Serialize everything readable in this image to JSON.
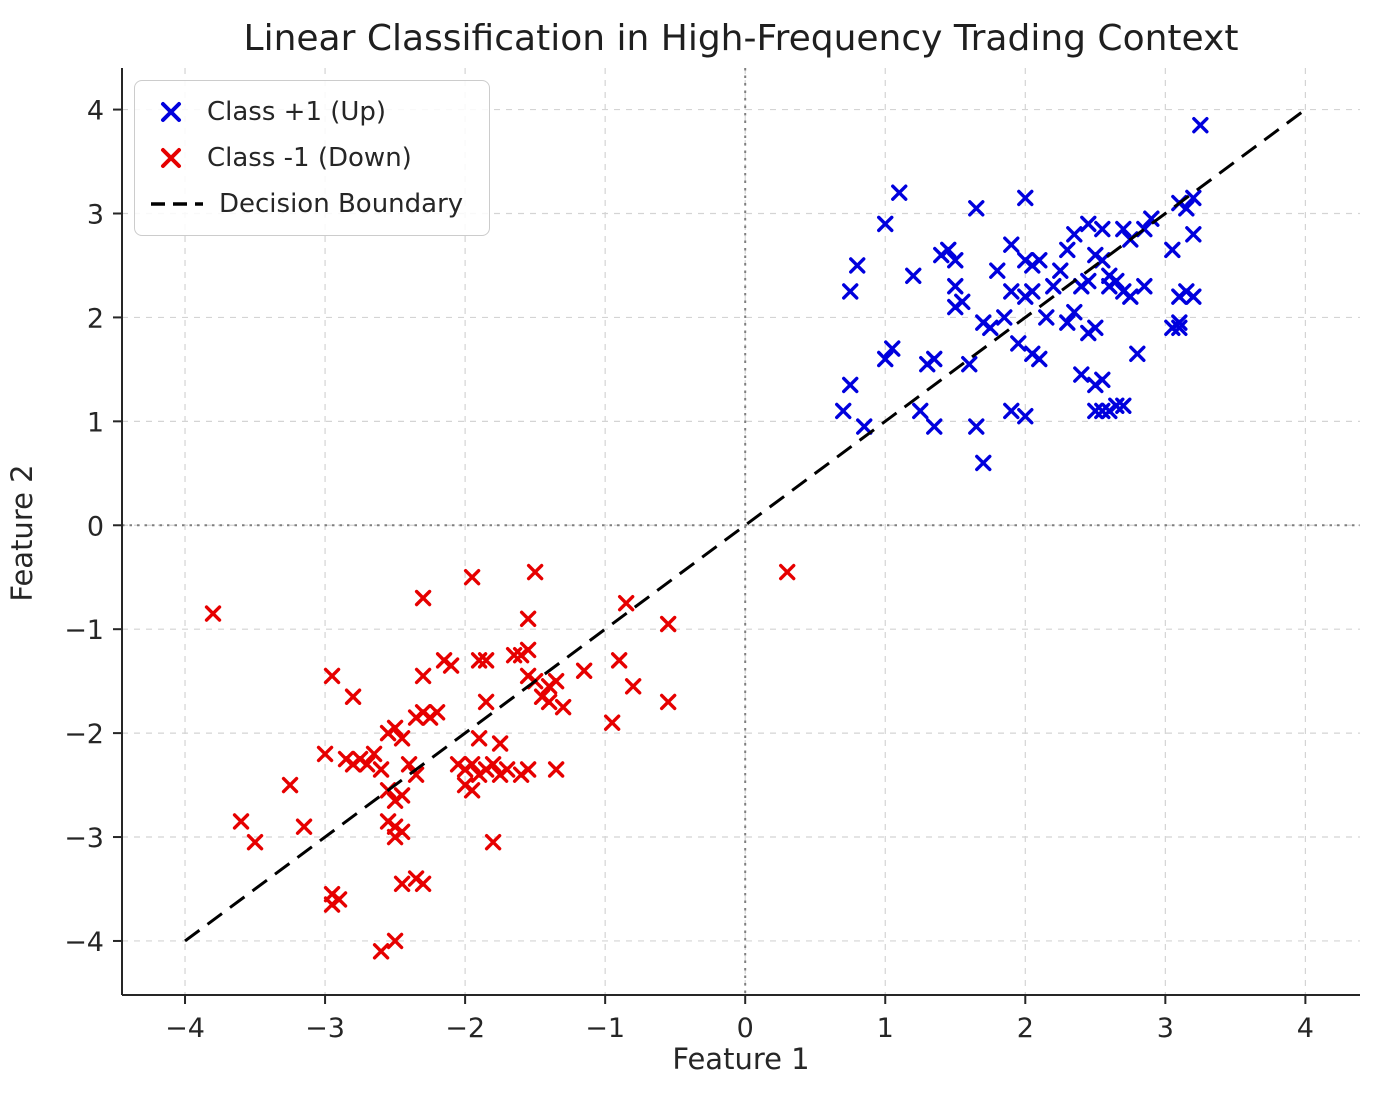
{
  "chart_data": {
    "type": "scatter",
    "title": "Linear Classification in High-Frequency Trading Context",
    "xlabel": "Feature 1",
    "ylabel": "Feature 2",
    "xlim": [
      -4.45,
      4.39
    ],
    "ylim": [
      -4.52,
      4.4
    ],
    "x_ticks": [
      -4,
      -3,
      -2,
      -1,
      0,
      1,
      2,
      3,
      4
    ],
    "y_ticks": [
      -4,
      -3,
      -2,
      -1,
      0,
      1,
      2,
      3,
      4
    ],
    "grid": true,
    "legend_position": "upper-left",
    "style": {
      "grid_color": "#d4d4d4",
      "spine_color": "#262626",
      "text_color": "#262626",
      "background": "#ffffff"
    },
    "reference_lines": [
      {
        "axis": "x",
        "value": 0,
        "style": "dotted",
        "color": "#7f7f7f"
      },
      {
        "axis": "y",
        "value": 0,
        "style": "dotted",
        "color": "#7f7f7f"
      }
    ],
    "series": [
      {
        "name": "Class +1 (Up)",
        "marker": "x",
        "color": "#0000dd",
        "points": [
          [
            0.7,
            1.1
          ],
          [
            0.75,
            1.35
          ],
          [
            0.8,
            2.5
          ],
          [
            0.75,
            2.25
          ],
          [
            0.85,
            0.95
          ],
          [
            1.0,
            2.9
          ],
          [
            1.0,
            1.6
          ],
          [
            1.05,
            1.7
          ],
          [
            1.1,
            3.2
          ],
          [
            1.2,
            2.4
          ],
          [
            1.25,
            1.1
          ],
          [
            1.3,
            1.55
          ],
          [
            1.35,
            1.6
          ],
          [
            1.35,
            0.95
          ],
          [
            1.4,
            2.6
          ],
          [
            1.45,
            2.65
          ],
          [
            1.5,
            2.55
          ],
          [
            1.5,
            2.3
          ],
          [
            1.5,
            2.1
          ],
          [
            1.55,
            2.15
          ],
          [
            1.6,
            1.55
          ],
          [
            1.65,
            3.05
          ],
          [
            1.65,
            0.95
          ],
          [
            1.7,
            1.95
          ],
          [
            1.7,
            0.6
          ],
          [
            1.75,
            1.9
          ],
          [
            1.8,
            2.45
          ],
          [
            1.85,
            2.0
          ],
          [
            1.9,
            2.7
          ],
          [
            1.9,
            2.25
          ],
          [
            1.9,
            1.1
          ],
          [
            1.95,
            1.75
          ],
          [
            2.0,
            3.15
          ],
          [
            2.0,
            2.55
          ],
          [
            2.0,
            2.2
          ],
          [
            2.0,
            1.05
          ],
          [
            2.05,
            2.5
          ],
          [
            2.05,
            2.25
          ],
          [
            2.05,
            1.65
          ],
          [
            2.1,
            2.55
          ],
          [
            2.1,
            1.6
          ],
          [
            2.15,
            2.0
          ],
          [
            2.2,
            2.3
          ],
          [
            2.25,
            2.45
          ],
          [
            2.3,
            2.65
          ],
          [
            2.3,
            1.95
          ],
          [
            2.35,
            2.8
          ],
          [
            2.35,
            2.05
          ],
          [
            2.4,
            2.3
          ],
          [
            2.4,
            1.45
          ],
          [
            2.45,
            2.9
          ],
          [
            2.45,
            2.35
          ],
          [
            2.45,
            1.85
          ],
          [
            2.5,
            2.6
          ],
          [
            2.5,
            1.9
          ],
          [
            2.5,
            1.35
          ],
          [
            2.5,
            1.1
          ],
          [
            2.55,
            2.85
          ],
          [
            2.55,
            2.55
          ],
          [
            2.55,
            1.4
          ],
          [
            2.55,
            1.1
          ],
          [
            2.6,
            2.4
          ],
          [
            2.6,
            2.3
          ],
          [
            2.6,
            1.1
          ],
          [
            2.65,
            2.35
          ],
          [
            2.65,
            1.15
          ],
          [
            2.7,
            2.85
          ],
          [
            2.7,
            2.25
          ],
          [
            2.7,
            1.15
          ],
          [
            2.75,
            2.75
          ],
          [
            2.75,
            2.2
          ],
          [
            2.8,
            1.65
          ],
          [
            2.85,
            2.85
          ],
          [
            2.85,
            2.3
          ],
          [
            2.9,
            2.95
          ],
          [
            3.05,
            2.65
          ],
          [
            3.05,
            1.9
          ],
          [
            3.1,
            3.1
          ],
          [
            3.1,
            2.2
          ],
          [
            3.1,
            1.95
          ],
          [
            3.1,
            1.9
          ],
          [
            3.15,
            3.05
          ],
          [
            3.15,
            2.25
          ],
          [
            3.2,
            3.15
          ],
          [
            3.2,
            2.8
          ],
          [
            3.2,
            2.2
          ],
          [
            3.25,
            3.85
          ]
        ]
      },
      {
        "name": "Class -1 (Down)",
        "marker": "x",
        "color": "#e60000",
        "points": [
          [
            -3.8,
            -0.85
          ],
          [
            -3.6,
            -2.85
          ],
          [
            -3.5,
            -3.05
          ],
          [
            -3.25,
            -2.5
          ],
          [
            -3.15,
            -2.9
          ],
          [
            -3.0,
            -2.2
          ],
          [
            -2.95,
            -1.45
          ],
          [
            -2.95,
            -3.55
          ],
          [
            -2.95,
            -3.65
          ],
          [
            -2.9,
            -3.6
          ],
          [
            -2.85,
            -2.25
          ],
          [
            -2.8,
            -1.65
          ],
          [
            -2.8,
            -2.3
          ],
          [
            -2.75,
            -2.25
          ],
          [
            -2.7,
            -2.3
          ],
          [
            -2.65,
            -2.2
          ],
          [
            -2.6,
            -2.35
          ],
          [
            -2.6,
            -4.1
          ],
          [
            -2.55,
            -2.0
          ],
          [
            -2.55,
            -2.55
          ],
          [
            -2.55,
            -2.85
          ],
          [
            -2.5,
            -1.95
          ],
          [
            -2.5,
            -2.65
          ],
          [
            -2.5,
            -2.9
          ],
          [
            -2.5,
            -3.0
          ],
          [
            -2.5,
            -4.0
          ],
          [
            -2.45,
            -2.05
          ],
          [
            -2.45,
            -2.6
          ],
          [
            -2.45,
            -2.95
          ],
          [
            -2.45,
            -3.45
          ],
          [
            -2.4,
            -2.3
          ],
          [
            -2.35,
            -1.85
          ],
          [
            -2.35,
            -2.4
          ],
          [
            -2.35,
            -3.4
          ],
          [
            -2.3,
            -0.7
          ],
          [
            -2.3,
            -1.45
          ],
          [
            -2.3,
            -1.8
          ],
          [
            -2.3,
            -3.45
          ],
          [
            -2.25,
            -1.85
          ],
          [
            -2.2,
            -1.8
          ],
          [
            -2.15,
            -1.3
          ],
          [
            -2.1,
            -1.35
          ],
          [
            -2.05,
            -2.3
          ],
          [
            -2.0,
            -2.35
          ],
          [
            -2.0,
            -2.5
          ],
          [
            -1.95,
            -0.5
          ],
          [
            -1.95,
            -2.3
          ],
          [
            -1.95,
            -2.55
          ],
          [
            -1.9,
            -1.3
          ],
          [
            -1.9,
            -2.05
          ],
          [
            -1.9,
            -2.4
          ],
          [
            -1.85,
            -1.3
          ],
          [
            -1.85,
            -1.7
          ],
          [
            -1.85,
            -2.35
          ],
          [
            -1.8,
            -2.3
          ],
          [
            -1.8,
            -3.05
          ],
          [
            -1.75,
            -2.1
          ],
          [
            -1.75,
            -2.4
          ],
          [
            -1.7,
            -2.35
          ],
          [
            -1.65,
            -1.25
          ],
          [
            -1.6,
            -1.25
          ],
          [
            -1.6,
            -2.4
          ],
          [
            -1.55,
            -0.9
          ],
          [
            -1.55,
            -1.2
          ],
          [
            -1.55,
            -1.45
          ],
          [
            -1.55,
            -2.35
          ],
          [
            -1.5,
            -0.45
          ],
          [
            -1.5,
            -1.5
          ],
          [
            -1.45,
            -1.65
          ],
          [
            -1.4,
            -1.55
          ],
          [
            -1.4,
            -1.7
          ],
          [
            -1.35,
            -1.5
          ],
          [
            -1.35,
            -2.35
          ],
          [
            -1.3,
            -1.75
          ],
          [
            -1.15,
            -1.4
          ],
          [
            -0.95,
            -1.9
          ],
          [
            -0.9,
            -1.3
          ],
          [
            -0.85,
            -0.75
          ],
          [
            -0.8,
            -1.55
          ],
          [
            -0.55,
            -0.95
          ],
          [
            -0.55,
            -1.7
          ],
          [
            0.3,
            -0.45
          ]
        ]
      },
      {
        "name": "Decision Boundary",
        "type": "line",
        "color": "#000000",
        "dash": "dashed",
        "points": [
          [
            -4,
            -4
          ],
          [
            4,
            4
          ]
        ]
      }
    ]
  }
}
